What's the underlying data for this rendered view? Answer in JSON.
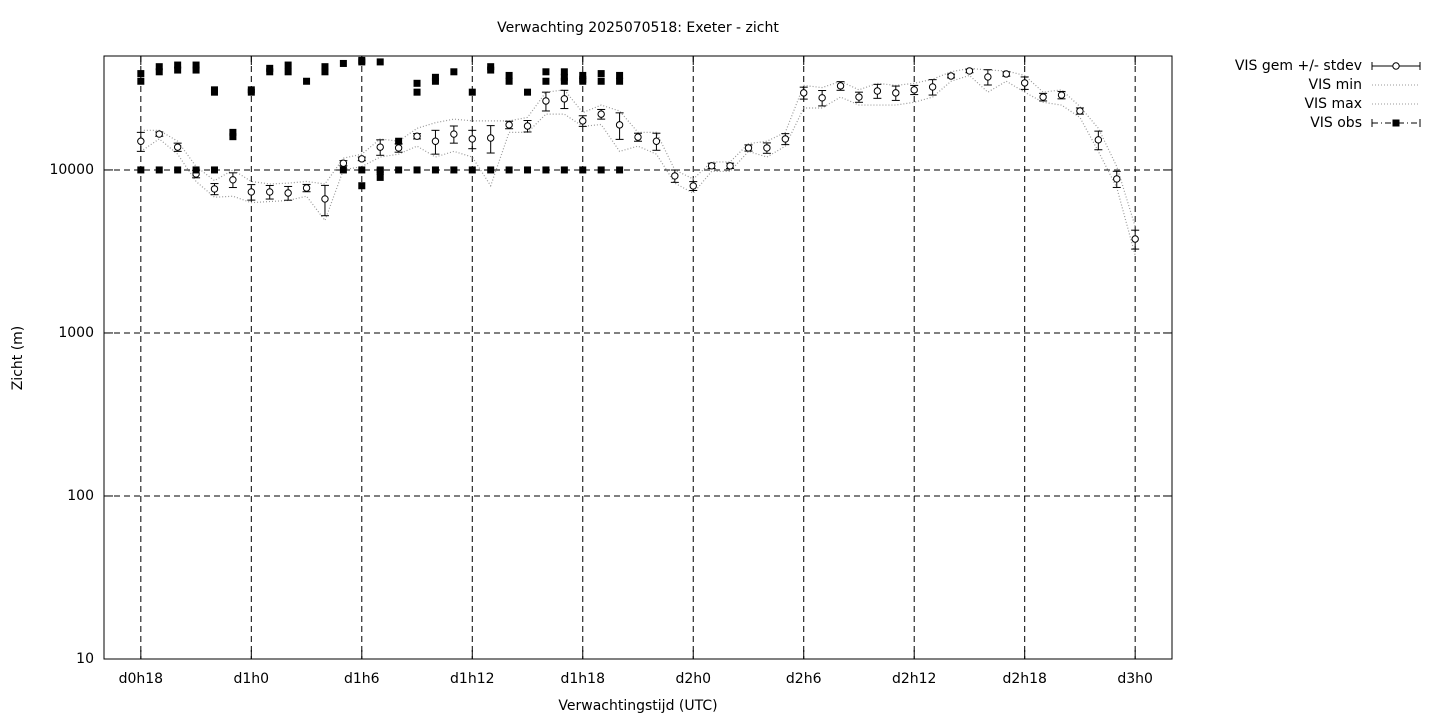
{
  "chart_data": {
    "type": "scatter",
    "title": "Verwachting 2025070518: Exeter - zicht",
    "xlabel": "Verwachtingstijd (UTC)",
    "ylabel": "Zicht (m)",
    "log_y": true,
    "grid": true,
    "legend": "outside right top",
    "xlim": [
      16,
      74
    ],
    "ylim": [
      10,
      50000
    ],
    "xticks": [
      {
        "value": 18,
        "label": "d0h18"
      },
      {
        "value": 24,
        "label": "d1h0"
      },
      {
        "value": 30,
        "label": "d1h6"
      },
      {
        "value": 36,
        "label": "d1h12"
      },
      {
        "value": 42,
        "label": "d1h18"
      },
      {
        "value": 48,
        "label": "d2h0"
      },
      {
        "value": 54,
        "label": "d2h6"
      },
      {
        "value": 60,
        "label": "d2h12"
      },
      {
        "value": 66,
        "label": "d2h18"
      },
      {
        "value": 72,
        "label": "d3h0"
      }
    ],
    "yticks": [
      10,
      100,
      1000,
      10000
    ],
    "x": [
      18,
      19,
      20,
      21,
      22,
      23,
      24,
      25,
      26,
      27,
      28,
      29,
      30,
      31,
      32,
      33,
      34,
      35,
      36,
      37,
      38,
      39,
      40,
      41,
      42,
      43,
      44,
      45,
      46,
      47,
      48,
      49,
      50,
      51,
      52,
      53,
      54,
      55,
      56,
      57,
      58,
      59,
      60,
      61,
      62,
      63,
      64,
      65,
      66,
      67,
      68,
      69,
      70,
      71,
      72
    ],
    "series": [
      {
        "name": "VIS gem +/- stdev",
        "color": "#000000",
        "values": [
          15000,
          16600,
          13800,
          9450,
          7650,
          8700,
          7330,
          7330,
          7220,
          7750,
          6640,
          11000,
          11700,
          13800,
          13650,
          16100,
          15000,
          16600,
          15500,
          15700,
          18900,
          18600,
          26500,
          27300,
          20000,
          22000,
          18900,
          15900,
          15000,
          9190,
          7980,
          10600,
          10600,
          13650,
          13650,
          15500,
          29700,
          27700,
          32800,
          28000,
          30500,
          29700,
          31000,
          32300,
          37700,
          40500,
          37200,
          38800,
          34200,
          28000,
          28800,
          23000,
          15300,
          8810,
          3770
        ],
        "errors": [
          2000,
          500,
          800,
          500,
          600,
          900,
          800,
          700,
          700,
          400,
          1400,
          400,
          300,
          1500,
          800,
          600,
          2500,
          2000,
          2000,
          3000,
          1000,
          1500,
          3500,
          3500,
          1500,
          1500,
          3500,
          900,
          1800,
          800,
          500,
          400,
          400,
          600,
          1000,
          1200,
          2500,
          3000,
          2000,
          2000,
          3000,
          3000,
          2000,
          3500,
          1000,
          1000,
          4000,
          1200,
          3000,
          1500,
          1500,
          1000,
          2000,
          1000,
          500
        ]
      },
      {
        "name": "VIS min",
        "color": "#999999",
        "values": [
          13000,
          15500,
          12500,
          8500,
          6800,
          6900,
          6300,
          6400,
          6500,
          6900,
          4900,
          10000,
          10500,
          12000,
          12500,
          14000,
          12000,
          13000,
          12000,
          8000,
          17000,
          17000,
          22000,
          22000,
          18500,
          19000,
          13000,
          14000,
          12500,
          8300,
          7200,
          9800,
          9800,
          13000,
          12000,
          14000,
          24000,
          24000,
          28000,
          25000,
          25000,
          25000,
          26000,
          28000,
          35000,
          38000,
          30000,
          35000,
          30000,
          26000,
          25000,
          21000,
          13000,
          7800,
          3000
        ]
      },
      {
        "name": "VIS max",
        "color": "#999999",
        "values": [
          17500,
          17500,
          15000,
          10500,
          8600,
          10000,
          8500,
          8200,
          8300,
          8500,
          8200,
          11800,
          12500,
          15500,
          15000,
          18000,
          19500,
          20500,
          20000,
          20000,
          20000,
          21000,
          30000,
          31000,
          22500,
          25000,
          23000,
          17000,
          17000,
          10000,
          8800,
          11200,
          11200,
          14500,
          15000,
          17000,
          33000,
          32000,
          35000,
          31000,
          34000,
          33000,
          34000,
          36000,
          40000,
          42000,
          41000,
          40500,
          38000,
          30000,
          31000,
          24500,
          18000,
          10500,
          4500
        ]
      },
      {
        "name": "VIS obs",
        "color": "#000000",
        "x": [
          18,
          18,
          18,
          19,
          19,
          19,
          20,
          20,
          20,
          21,
          21,
          21,
          22,
          22,
          22,
          23,
          23,
          24,
          24,
          25,
          25,
          26,
          26,
          27,
          28,
          28,
          29,
          29,
          30,
          30,
          30,
          30,
          31,
          31,
          31,
          31,
          32,
          32,
          33,
          33,
          33,
          34,
          34,
          34,
          35,
          35,
          36,
          36,
          37,
          37,
          37,
          38,
          38,
          38,
          39,
          39,
          40,
          40,
          40,
          41,
          41,
          41,
          41,
          42,
          42,
          42,
          42,
          43,
          43,
          43,
          44,
          44,
          44
        ],
        "values": [
          10000,
          35000,
          39000,
          10000,
          40000,
          43000,
          10000,
          41000,
          44000,
          10000,
          41000,
          44000,
          10000,
          31000,
          30000,
          16000,
          17000,
          30000,
          31000,
          40000,
          42000,
          40000,
          44000,
          35000,
          40000,
          43000,
          10000,
          45000,
          8000,
          10000,
          46000,
          47000,
          9000,
          9800,
          10000,
          46000,
          10000,
          15000,
          10000,
          30000,
          34000,
          10000,
          35000,
          37000,
          10000,
          40000,
          10000,
          30000,
          10000,
          41000,
          43000,
          10000,
          35000,
          38000,
          10000,
          30000,
          10000,
          35000,
          40000,
          10000,
          35000,
          37000,
          40000,
          10000,
          35000,
          36000,
          38000,
          10000,
          35000,
          39000,
          10000,
          35000,
          38000
        ]
      }
    ]
  }
}
